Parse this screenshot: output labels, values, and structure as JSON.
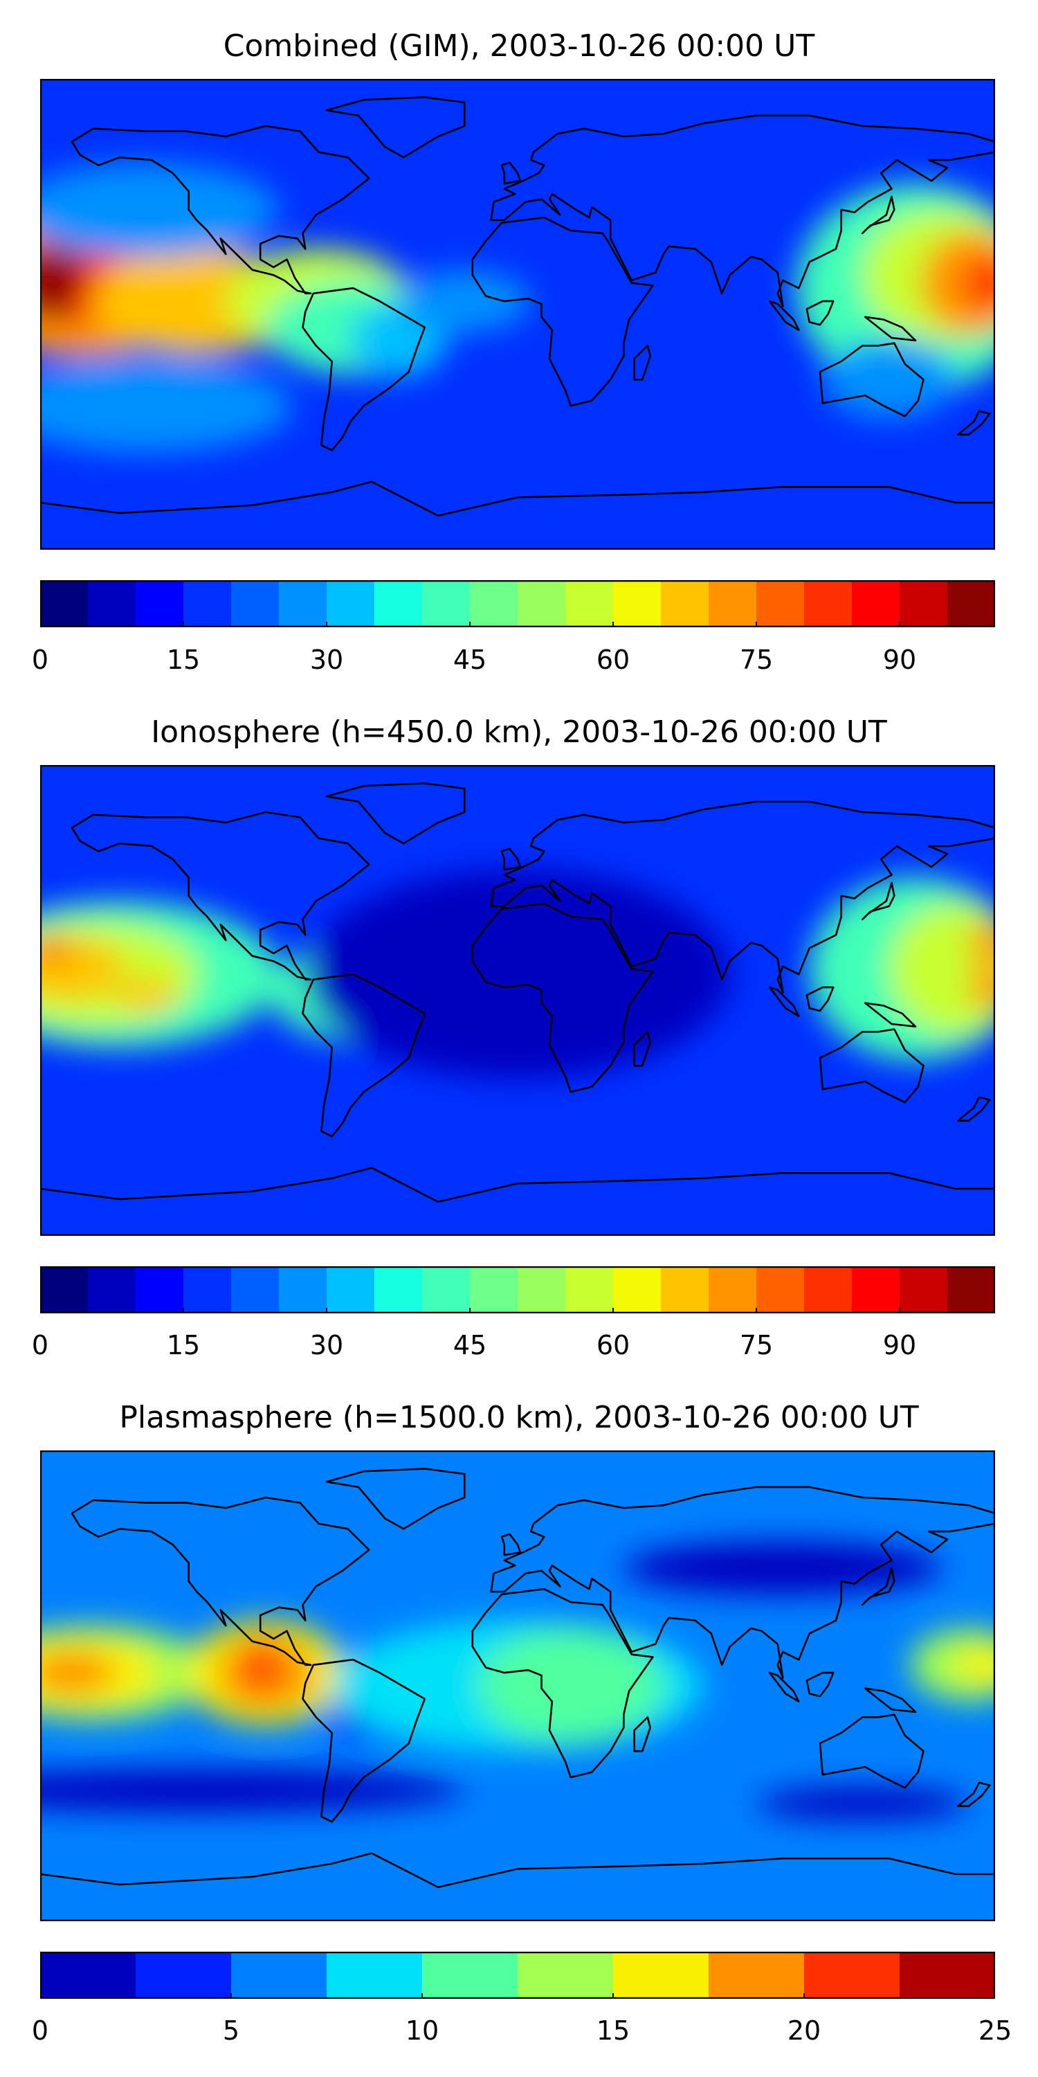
{
  "panels": [
    {
      "id": "combined",
      "title": "Combined (GIM), 2003-10-26 00:00 UT",
      "colorbar": {
        "levels": [
          0,
          5,
          10,
          15,
          20,
          25,
          30,
          35,
          40,
          45,
          50,
          55,
          60,
          65,
          70,
          75,
          80,
          85,
          90,
          95,
          100
        ],
        "colors": [
          "#00007f",
          "#0000bf",
          "#0000ff",
          "#0030ff",
          "#0060ff",
          "#0090ff",
          "#00c0ff",
          "#16ffe0",
          "#40ffb7",
          "#6dff8a",
          "#9aff5d",
          "#c7ff30",
          "#f4f802",
          "#ffc400",
          "#ff9400",
          "#ff6000",
          "#ff3000",
          "#ff0000",
          "#c80000",
          "#8b0000"
        ],
        "tick_labels": [
          "0",
          "15",
          "30",
          "45",
          "60",
          "75",
          "90"
        ],
        "tick_values": [
          0,
          15,
          30,
          45,
          60,
          75,
          90
        ]
      },
      "blobs": [
        {
          "lon": -165,
          "lat": 10,
          "rx": 48,
          "ry": 26,
          "color": "#ff9400"
        },
        {
          "lon": -170,
          "lat": 13,
          "rx": 28,
          "ry": 16,
          "color": "#ff3000"
        },
        {
          "lon": -176,
          "lat": 17,
          "rx": 14,
          "ry": 8,
          "color": "#8b0000"
        },
        {
          "lon": -176,
          "lat": 5,
          "rx": 10,
          "ry": 7,
          "color": "#8b0000"
        },
        {
          "lon": -120,
          "lat": 5,
          "rx": 40,
          "ry": 20,
          "color": "#ffc400"
        },
        {
          "lon": -75,
          "lat": 5,
          "rx": 35,
          "ry": 20,
          "color": "#c7ff30"
        },
        {
          "lon": -60,
          "lat": -5,
          "rx": 35,
          "ry": 18,
          "color": "#40ffb7"
        },
        {
          "lon": -45,
          "lat": -10,
          "rx": 18,
          "ry": 14,
          "color": "#00c0ff"
        },
        {
          "lon": -20,
          "lat": 5,
          "rx": 25,
          "ry": 12,
          "color": "#0090ff"
        },
        {
          "lon": -140,
          "lat": 40,
          "rx": 50,
          "ry": 18,
          "color": "#0090ff"
        },
        {
          "lon": -140,
          "lat": -35,
          "rx": 55,
          "ry": 18,
          "color": "#0090ff"
        },
        {
          "lon": 150,
          "lat": 10,
          "rx": 45,
          "ry": 40,
          "color": "#40ffb7"
        },
        {
          "lon": 160,
          "lat": 15,
          "rx": 30,
          "ry": 25,
          "color": "#c7ff30"
        },
        {
          "lon": 172,
          "lat": 12,
          "rx": 20,
          "ry": 20,
          "color": "#ff9400"
        },
        {
          "lon": 178,
          "lat": 12,
          "rx": 10,
          "ry": 10,
          "color": "#ff3000"
        },
        {
          "lon": 140,
          "lat": -25,
          "rx": 25,
          "ry": 15,
          "color": "#0090ff"
        }
      ],
      "background": "#0030ff"
    },
    {
      "id": "ionosphere",
      "title": "Ionosphere  (h=450.0 km), 2003-10-26 00:00 UT",
      "colorbar": {
        "levels": [
          0,
          5,
          10,
          15,
          20,
          25,
          30,
          35,
          40,
          45,
          50,
          55,
          60,
          65,
          70,
          75,
          80,
          85,
          90,
          95,
          100
        ],
        "colors": [
          "#00007f",
          "#0000bf",
          "#0000ff",
          "#0030ff",
          "#0060ff",
          "#0090ff",
          "#00c0ff",
          "#16ffe0",
          "#40ffb7",
          "#6dff8a",
          "#9aff5d",
          "#c7ff30",
          "#f4f802",
          "#ffc400",
          "#ff9400",
          "#ff6000",
          "#ff3000",
          "#ff0000",
          "#c80000",
          "#8b0000"
        ],
        "tick_labels": [
          "0",
          "15",
          "30",
          "45",
          "60",
          "75",
          "90"
        ],
        "tick_values": [
          0,
          15,
          30,
          45,
          60,
          75,
          90
        ]
      },
      "blobs": [
        {
          "lon": -150,
          "lat": 10,
          "rx": 60,
          "ry": 28,
          "color": "#40ffb7"
        },
        {
          "lon": -160,
          "lat": 10,
          "rx": 40,
          "ry": 20,
          "color": "#c7ff30"
        },
        {
          "lon": -170,
          "lat": 12,
          "rx": 22,
          "ry": 12,
          "color": "#ffc400"
        },
        {
          "lon": -176,
          "lat": 20,
          "rx": 8,
          "ry": 5,
          "color": "#ff6000"
        },
        {
          "lon": -140,
          "lat": 2,
          "rx": 12,
          "ry": 6,
          "color": "#ffc400"
        },
        {
          "lon": -65,
          "lat": 3,
          "rx": 28,
          "ry": 18,
          "color": "#40ffb7"
        },
        {
          "lon": -55,
          "lat": 8,
          "rx": 12,
          "ry": 8,
          "color": "#c7ff30"
        },
        {
          "lon": 150,
          "lat": 12,
          "rx": 40,
          "ry": 35,
          "color": "#40ffb7"
        },
        {
          "lon": 165,
          "lat": 12,
          "rx": 25,
          "ry": 25,
          "color": "#c7ff30"
        },
        {
          "lon": 178,
          "lat": 22,
          "rx": 8,
          "ry": 8,
          "color": "#ff9400"
        },
        {
          "lon": 178,
          "lat": 5,
          "rx": 8,
          "ry": 8,
          "color": "#ff9400"
        },
        {
          "lon": 0,
          "lat": 10,
          "rx": 80,
          "ry": 40,
          "color": "#0000bf"
        }
      ],
      "background": "#0030ff"
    },
    {
      "id": "plasmasphere",
      "title": "Plasmasphere (h=1500.0 km), 2003-10-26 00:00 UT",
      "colorbar": {
        "levels": [
          0,
          2.5,
          5,
          7.5,
          10,
          12.5,
          15,
          17.5,
          20,
          22.5,
          25
        ],
        "colors": [
          "#0000bf",
          "#0020ff",
          "#0080ff",
          "#00e0f8",
          "#50ffa0",
          "#a0ff50",
          "#f8f000",
          "#ff9000",
          "#ff3000",
          "#b00000"
        ],
        "tick_labels": [
          "0",
          "5",
          "10",
          "15",
          "20",
          "25"
        ],
        "tick_values": [
          0,
          5,
          10,
          15,
          20,
          25
        ]
      },
      "blobs": [
        {
          "lon": -160,
          "lat": 5,
          "rx": 45,
          "ry": 18,
          "color": "#a0ff50"
        },
        {
          "lon": -165,
          "lat": 5,
          "rx": 30,
          "ry": 14,
          "color": "#f8f000"
        },
        {
          "lon": -168,
          "lat": 5,
          "rx": 16,
          "ry": 8,
          "color": "#ff9000"
        },
        {
          "lon": -95,
          "lat": 5,
          "rx": 30,
          "ry": 20,
          "color": "#f8f000"
        },
        {
          "lon": -95,
          "lat": 5,
          "rx": 18,
          "ry": 14,
          "color": "#ff9000"
        },
        {
          "lon": -97,
          "lat": 8,
          "rx": 6,
          "ry": 10,
          "color": "#ff3000"
        },
        {
          "lon": -60,
          "lat": -12,
          "rx": 12,
          "ry": 8,
          "color": "#0020ff"
        },
        {
          "lon": -60,
          "lat": -12,
          "rx": 5,
          "ry": 3,
          "color": "#0000bf"
        },
        {
          "lon": 0,
          "lat": 0,
          "rx": 70,
          "ry": 25,
          "color": "#00e0f8"
        },
        {
          "lon": 20,
          "lat": 0,
          "rx": 35,
          "ry": 22,
          "color": "#50ffa0"
        },
        {
          "lon": 170,
          "lat": 8,
          "rx": 22,
          "ry": 14,
          "color": "#a0ff50"
        },
        {
          "lon": 176,
          "lat": 8,
          "rx": 12,
          "ry": 7,
          "color": "#f8f000"
        },
        {
          "lon": 100,
          "lat": 45,
          "rx": 60,
          "ry": 10,
          "color": "#0000bf"
        },
        {
          "lon": -120,
          "lat": -40,
          "rx": 100,
          "ry": 8,
          "color": "#0000bf"
        },
        {
          "lon": 130,
          "lat": -45,
          "rx": 40,
          "ry": 6,
          "color": "#0000bf"
        }
      ],
      "background": "#0080ff"
    }
  ]
}
